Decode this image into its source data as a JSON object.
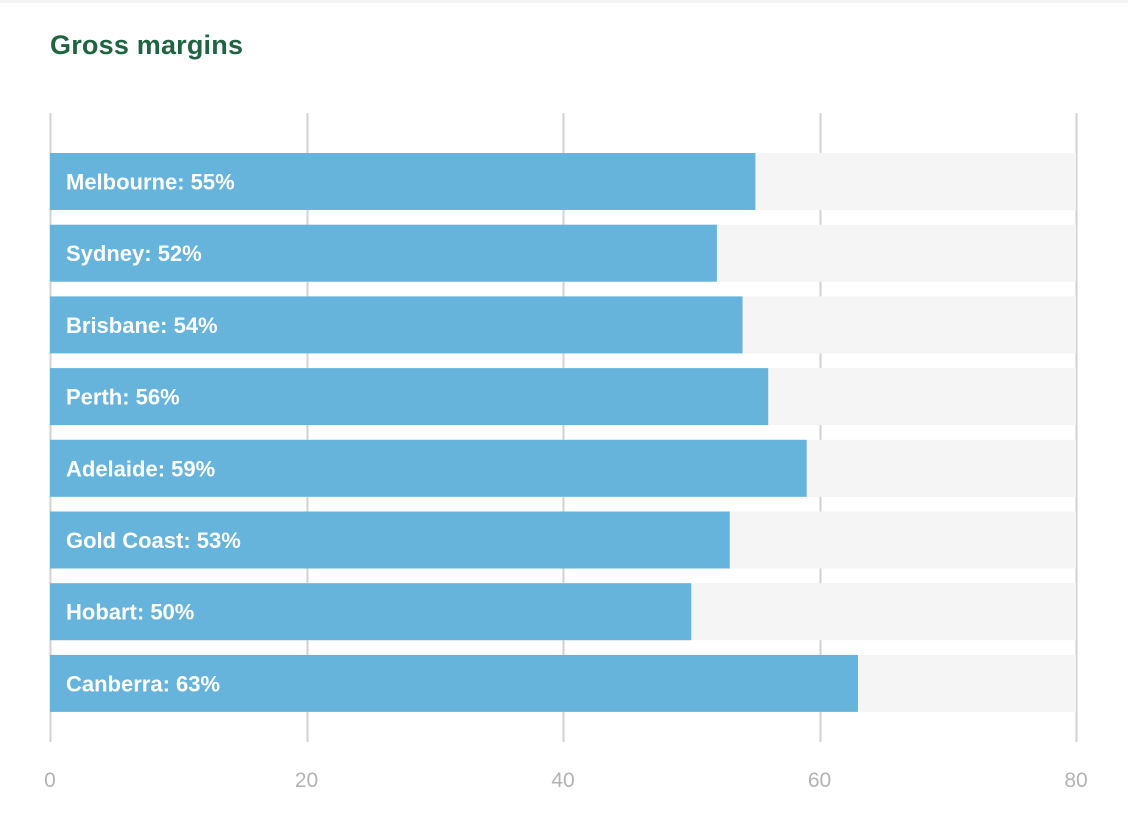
{
  "chart_data": {
    "type": "bar",
    "orientation": "horizontal",
    "title": "Gross margins",
    "categories": [
      "Melbourne",
      "Sydney",
      "Brisbane",
      "Perth",
      "Adelaide",
      "Gold Coast",
      "Hobart",
      "Canberra"
    ],
    "values": [
      55,
      52,
      54,
      56,
      59,
      53,
      50,
      63
    ],
    "labels": [
      "Melbourne: 55%",
      "Sydney: 52%",
      "Brisbane: 54%",
      "Perth: 56%",
      "Adelaide: 59%",
      "Gold Coast: 53%",
      "Hobart: 50%",
      "Canberra: 63%"
    ],
    "xlim": [
      0,
      80
    ],
    "xticks": [
      0,
      20,
      40,
      60,
      80
    ],
    "xtick_labels": [
      "0",
      "20",
      "40",
      "60",
      "80"
    ],
    "xlabel": "",
    "ylabel": "",
    "grid": true,
    "legend": "none",
    "colors": {
      "bar": "#66b4dc",
      "track": "#f5f5f5",
      "grid": "#d2d2d2",
      "title": "#1e6440",
      "label": "#ffffff",
      "tick": "#b3b3b3"
    }
  }
}
